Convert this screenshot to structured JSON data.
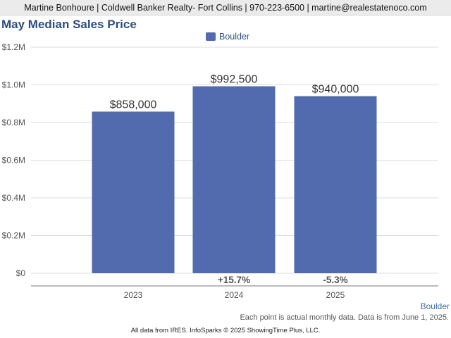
{
  "header": {
    "contact": "Martine Bonhoure | Coldwell Banker Realty- Fort Collins | 970-223-6500 | martine@realestatenoco.com"
  },
  "footer": {
    "source": "Boulder",
    "note": "Each point is actual monthly data. Data is from June 1, 2025.",
    "copyright": "All data from IRES. InfoSparks © 2025 ShowingTime Plus, LLC."
  },
  "colors": {
    "bar": "#526bae",
    "title": "#2d4f80",
    "grid": "#dcdcdc"
  },
  "chart_data": {
    "type": "bar",
    "title": "May Median Sales Price",
    "xlabel": "",
    "ylabel": "",
    "categories": [
      "2023",
      "2024",
      "2025"
    ],
    "series": [
      {
        "name": "Boulder",
        "values": [
          858000,
          992500,
          940000
        ],
        "value_labels": [
          "$858,000",
          "$992,500",
          "$940,000"
        ]
      }
    ],
    "change_labels": [
      "",
      "+15.7%",
      "-5.3%"
    ],
    "y_ticks": [
      0,
      200000,
      400000,
      600000,
      800000,
      1000000,
      1200000
    ],
    "y_tick_labels": [
      "$0",
      "$0.2M",
      "$0.4M",
      "$0.6M",
      "$0.8M",
      "$1.0M",
      "$1.2M"
    ],
    "ylim": [
      0,
      1200000
    ],
    "grid": true,
    "legend_position": "top-center"
  }
}
